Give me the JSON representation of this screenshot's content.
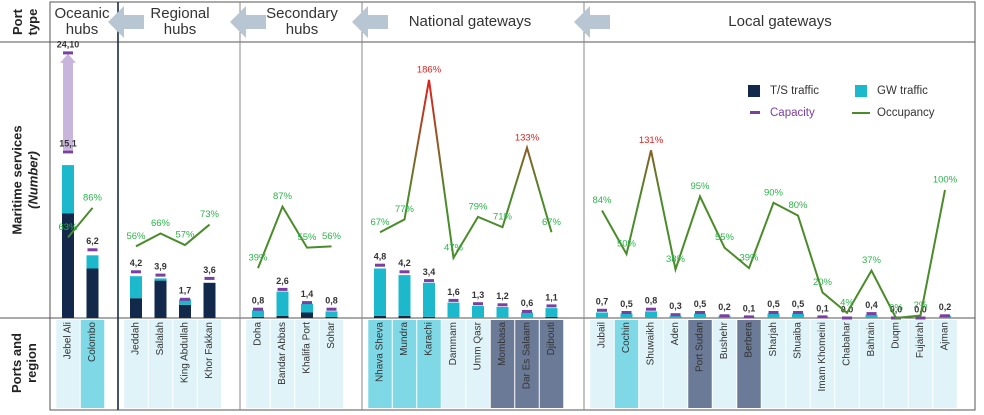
{
  "chart_data": {
    "type": "bar",
    "row_label_top": "Port type",
    "y_label": "Maritime services",
    "y_label_unit": "(Number)",
    "row_label_bottom": "Ports and region",
    "ts_color": "#13294b",
    "gw_color": "#1cb8cc",
    "capacity_color": "#7b3fa0",
    "occupancy_color": "#4a8c2a",
    "legend": {
      "ts": "T/S traffic",
      "gw": "GW traffic",
      "capacity": "Capacity",
      "occupancy": "Occupancy"
    },
    "groups": [
      {
        "name": "Oceanic hubs",
        "ports": [
          "Jebel Ali",
          "Colombo"
        ],
        "ts": [
          9.5,
          4.5
        ],
        "gw": [
          4.4,
          1.2
        ],
        "capacity": [
          15.1,
          6.2
        ],
        "capacity_labels": [
          "15,1",
          "6,2"
        ],
        "occupancy": [
          63,
          86
        ],
        "occupancy_labels": [
          "63%",
          "86%"
        ],
        "label_colors": [
          "#dff3f8",
          "#7fd8e6"
        ],
        "target": 24.1,
        "target_label": "24,10"
      },
      {
        "name": "Regional hubs",
        "ports": [
          "Jeddah",
          "Salalah",
          "King Abdullah",
          "Khor Fakkan"
        ],
        "ts": [
          1.8,
          3.4,
          1.2,
          3.2
        ],
        "gw": [
          2.0,
          0.2,
          0.5,
          0
        ],
        "capacity": [
          4.2,
          3.9,
          1.7,
          3.6
        ],
        "capacity_labels": [
          "4,2",
          "3,9",
          "1,7",
          "3,6"
        ],
        "occupancy": [
          56,
          66,
          57,
          73
        ],
        "occupancy_labels": [
          "56%",
          "66%",
          "57%",
          "73%"
        ],
        "label_colors": [
          "#dff3f8",
          "#dff3f8",
          "#dff3f8",
          "#dff3f8"
        ]
      },
      {
        "name": "Secondary hubs",
        "ports": [
          "Doha",
          "Bandar Abbas",
          "Khalifa Port",
          "Sohar"
        ],
        "ts": [
          0.1,
          0.2,
          0.5,
          0.1
        ],
        "gw": [
          0.6,
          2.2,
          0.8,
          0.5
        ],
        "capacity": [
          0.8,
          2.6,
          1.4,
          0.8
        ],
        "capacity_labels": [
          "0,8",
          "2,6",
          "1,4",
          "0,8"
        ],
        "occupancy": [
          39,
          87,
          55,
          56
        ],
        "occupancy_labels": [
          "39%",
          "87%",
          "55%",
          "56%"
        ],
        "label_colors": [
          "#dff3f8",
          "#dff3f8",
          "#dff3f8",
          "#dff3f8"
        ]
      },
      {
        "name": "National gateways",
        "ports": [
          "Nhava Sheva",
          "Mundra",
          "Karachi",
          "Dammam",
          "Umm Qasr",
          "Mombasa",
          "Dar Es Salaam",
          "Djibouti"
        ],
        "ts": [
          0.2,
          0.2,
          0.1,
          0,
          0,
          0,
          0,
          0.1
        ],
        "gw": [
          4.3,
          3.7,
          3.1,
          1.4,
          1.1,
          1.0,
          0.5,
          0.8
        ],
        "capacity": [
          4.8,
          4.2,
          3.4,
          1.6,
          1.3,
          1.2,
          0.6,
          1.1
        ],
        "capacity_labels": [
          "4,8",
          "4,2",
          "3,4",
          "1,6",
          "1,3",
          "1,2",
          "0,6",
          "1,1"
        ],
        "occupancy": [
          67,
          77,
          186,
          47,
          79,
          71,
          133,
          67
        ],
        "occupancy_labels": [
          "67%",
          "77%",
          "186%",
          "47%",
          "79%",
          "71%",
          "133%",
          "67%"
        ],
        "label_colors": [
          "#7fd8e6",
          "#7fd8e6",
          "#7fd8e6",
          "#dff3f8",
          "#dff3f8",
          "#6b7a96",
          "#6b7a96",
          "#6b7a96"
        ]
      },
      {
        "name": "Local gateways",
        "ports": [
          "Jubail",
          "Cochin",
          "Shuwaikh",
          "Aden",
          "Port Sudan",
          "Bushehr",
          "Berbera",
          "Sharjah",
          "Shuaiba",
          "Imam Khomeini",
          "Chabahar",
          "Bahrain",
          "Duqm",
          "Fujairah",
          "Ajman"
        ],
        "ts": [
          0,
          0,
          0,
          0,
          0,
          0,
          0,
          0,
          0,
          0,
          0,
          0,
          0,
          0,
          0
        ],
        "gw": [
          0.5,
          0.4,
          0.6,
          0.2,
          0.4,
          0.2,
          0.1,
          0.4,
          0.4,
          0.1,
          0,
          0.3,
          0,
          0,
          0.2
        ],
        "capacity": [
          0.7,
          0.5,
          0.8,
          0.3,
          0.5,
          0.2,
          0.1,
          0.5,
          0.5,
          0.1,
          0.0,
          0.4,
          0.0,
          0.0,
          0.2
        ],
        "capacity_labels": [
          "0,7",
          "0,5",
          "0,8",
          "0,3",
          "0,5",
          "0,2",
          "0,1",
          "0,5",
          "0,5",
          "0,1",
          "0,0",
          "0,4",
          "0,0",
          "0,0",
          "0,2"
        ],
        "occupancy": [
          84,
          50,
          131,
          38,
          95,
          55,
          39,
          90,
          80,
          20,
          4,
          37,
          0,
          2,
          100
        ],
        "occupancy_labels": [
          "84%",
          "50%",
          "131%",
          "38%",
          "95%",
          "55%",
          "39%",
          "90%",
          "80%",
          "20%",
          "4%",
          "37%",
          "0%",
          "2%",
          "100%"
        ],
        "label_colors": [
          "#dff3f8",
          "#7fd8e6",
          "#dff3f8",
          "#dff3f8",
          "#6b7a96",
          "#dff3f8",
          "#6b7a96",
          "#dff3f8",
          "#dff3f8",
          "#dff3f8",
          "#dff3f8",
          "#dff3f8",
          "#dff3f8",
          "#dff3f8",
          "#dff3f8"
        ]
      }
    ]
  }
}
